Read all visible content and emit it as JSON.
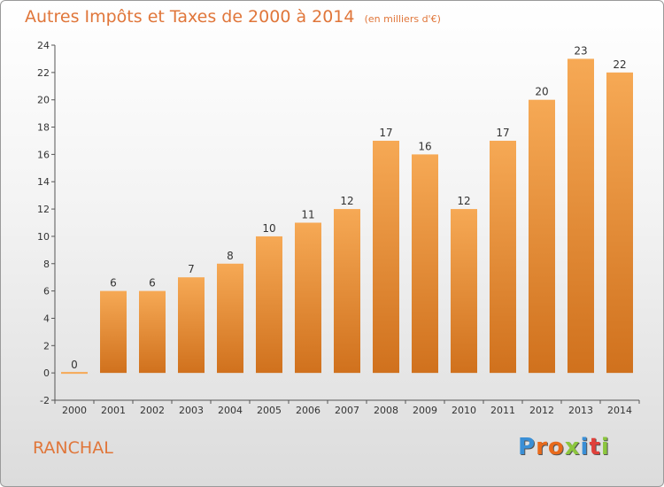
{
  "header": {
    "title": "Autres Impôts et Taxes de 2000 à 2014",
    "subtitle": "(en milliers d'€)"
  },
  "footer": {
    "place": "RANCHAL",
    "brand_letters": [
      "P",
      "r",
      "o",
      "x",
      "i",
      "t",
      "i"
    ]
  },
  "colors": {
    "bar_light": "#f6a955",
    "bar_dark": "#d0711d",
    "text_accent": "#e0763a",
    "brand": [
      "#3a8fd6",
      "#e86a1c",
      "#e86a1c",
      "#8cc63e",
      "#3a8fd6",
      "#e0403a",
      "#8cc63e"
    ]
  },
  "chart_data": {
    "type": "bar",
    "categories": [
      "2000",
      "2001",
      "2002",
      "2003",
      "2004",
      "2005",
      "2006",
      "2007",
      "2008",
      "2009",
      "2010",
      "2011",
      "2012",
      "2013",
      "2014"
    ],
    "values": [
      0,
      6,
      6,
      7,
      8,
      10,
      11,
      12,
      17,
      16,
      12,
      17,
      20,
      23,
      22
    ],
    "data_labels": [
      "0",
      "6",
      "6",
      "7",
      "8",
      "10",
      "11",
      "12",
      "17",
      "16",
      "12",
      "17",
      "20",
      "23",
      "22"
    ],
    "ylim": [
      -2,
      24
    ],
    "yticks": [
      -2,
      0,
      2,
      4,
      6,
      8,
      10,
      12,
      14,
      16,
      18,
      20,
      22,
      24
    ],
    "grid": false,
    "legend": "none"
  }
}
